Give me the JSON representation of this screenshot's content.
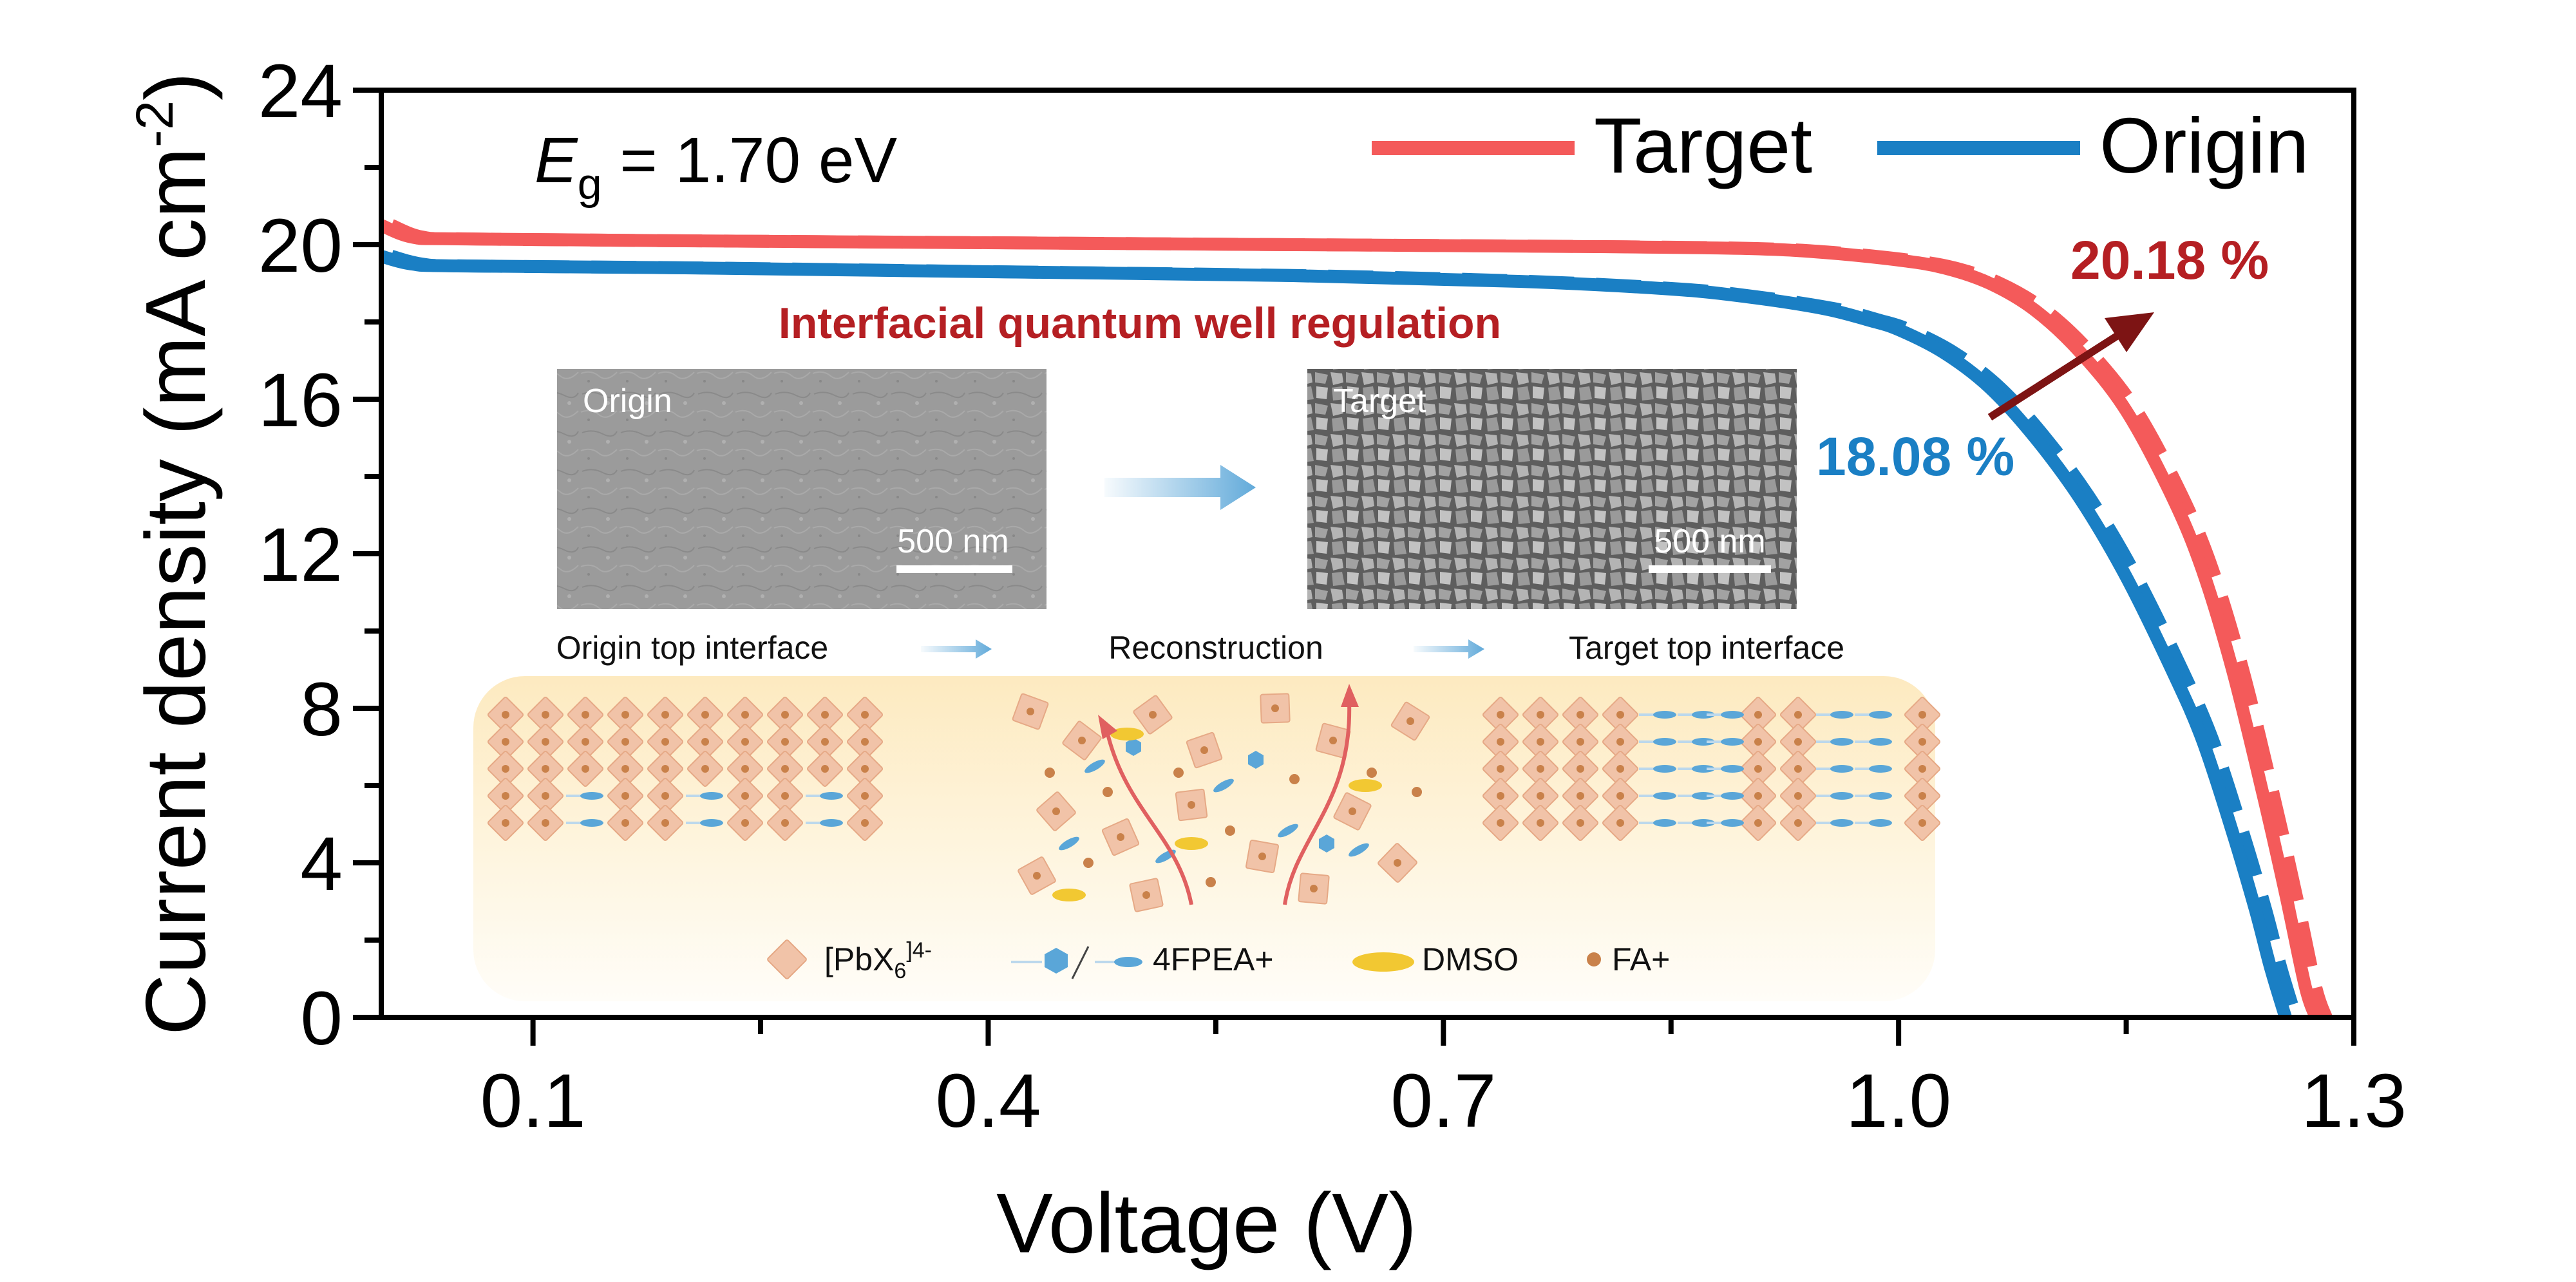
{
  "colors": {
    "target": "#f45a5a",
    "origin": "#1a7fc4",
    "arrow": "#7d1414",
    "annotation_red": "#b51f23",
    "annotation_blue": "#1a7fc4",
    "panel_top": "#fdeecb",
    "panel_bottom": "#fffdf6",
    "octahedron": "#f1c3a8",
    "organic": "#5aa6d8",
    "dmso": "#f2c832",
    "fa": "#c9814a"
  },
  "chart_data": {
    "type": "line",
    "xlabel": "Voltage (V)",
    "ylabel_main": "Current density (mA cm",
    "ylabel_sup": "-2",
    "ylabel_close": ")",
    "xlim": [
      0.0,
      1.3
    ],
    "ylim": [
      0,
      24
    ],
    "xticks": [
      0.1,
      0.4,
      0.7,
      1.0,
      1.3
    ],
    "xtick_labels": [
      "0.1",
      "0.4",
      "0.7",
      "1.0",
      "1.3"
    ],
    "xminor": [
      0.25,
      0.55,
      0.85,
      1.15
    ],
    "yticks": [
      0,
      4,
      8,
      12,
      16,
      20,
      24
    ],
    "ytick_labels": [
      "0",
      "4",
      "8",
      "12",
      "16",
      "20",
      "24"
    ],
    "yminor": [
      2,
      6,
      10,
      14,
      18,
      22
    ],
    "legend_position": "top-right",
    "series": [
      {
        "name": "Target",
        "color": "#f45a5a",
        "x": [
          0.0,
          0.02,
          0.05,
          0.2,
          0.4,
          0.6,
          0.8,
          0.9,
          0.95,
          1.0,
          1.03,
          1.06,
          1.09,
          1.12,
          1.15,
          1.18,
          1.2,
          1.22,
          1.24,
          1.255,
          1.268,
          1.275
        ],
        "y": [
          20.5,
          20.2,
          20.15,
          20.1,
          20.05,
          20.0,
          19.95,
          19.9,
          19.8,
          19.6,
          19.4,
          19.0,
          18.3,
          17.2,
          15.7,
          13.5,
          11.6,
          9.0,
          5.8,
          3.2,
          0.8,
          0.0
        ]
      },
      {
        "name": "Origin",
        "color": "#1a7fc4",
        "x": [
          0.0,
          0.02,
          0.05,
          0.2,
          0.4,
          0.6,
          0.75,
          0.85,
          0.9,
          0.95,
          0.98,
          1.0,
          1.03,
          1.06,
          1.09,
          1.12,
          1.15,
          1.18,
          1.2,
          1.22,
          1.235,
          1.245,
          1.255
        ],
        "y": [
          19.7,
          19.5,
          19.45,
          19.4,
          19.3,
          19.2,
          19.05,
          18.85,
          18.65,
          18.35,
          18.05,
          17.8,
          17.2,
          16.3,
          15.0,
          13.4,
          11.4,
          9.0,
          7.2,
          4.8,
          2.8,
          1.3,
          0.0
        ]
      }
    ],
    "annotations": {
      "eg_symbol": "E",
      "eg_subscript": "g",
      "eg_value": " = 1.70 eV",
      "target_pce": "20.18 %",
      "origin_pce": "18.08 %"
    }
  },
  "inset": {
    "title": "Interfacial quantum well regulation",
    "sem_origin_label": "Origin",
    "sem_target_label": "Target",
    "scale_bar": "500 nm",
    "stage_1": "Origin top interface",
    "stage_2": "Reconstruction",
    "stage_3": "Target top interface",
    "legend": {
      "pbx6_main": "[PbX",
      "pbx6_sub": "6",
      "pbx6_sup": "]4-",
      "fpea": "4FPEA+",
      "dmso": "DMSO",
      "fa": "FA+"
    }
  }
}
